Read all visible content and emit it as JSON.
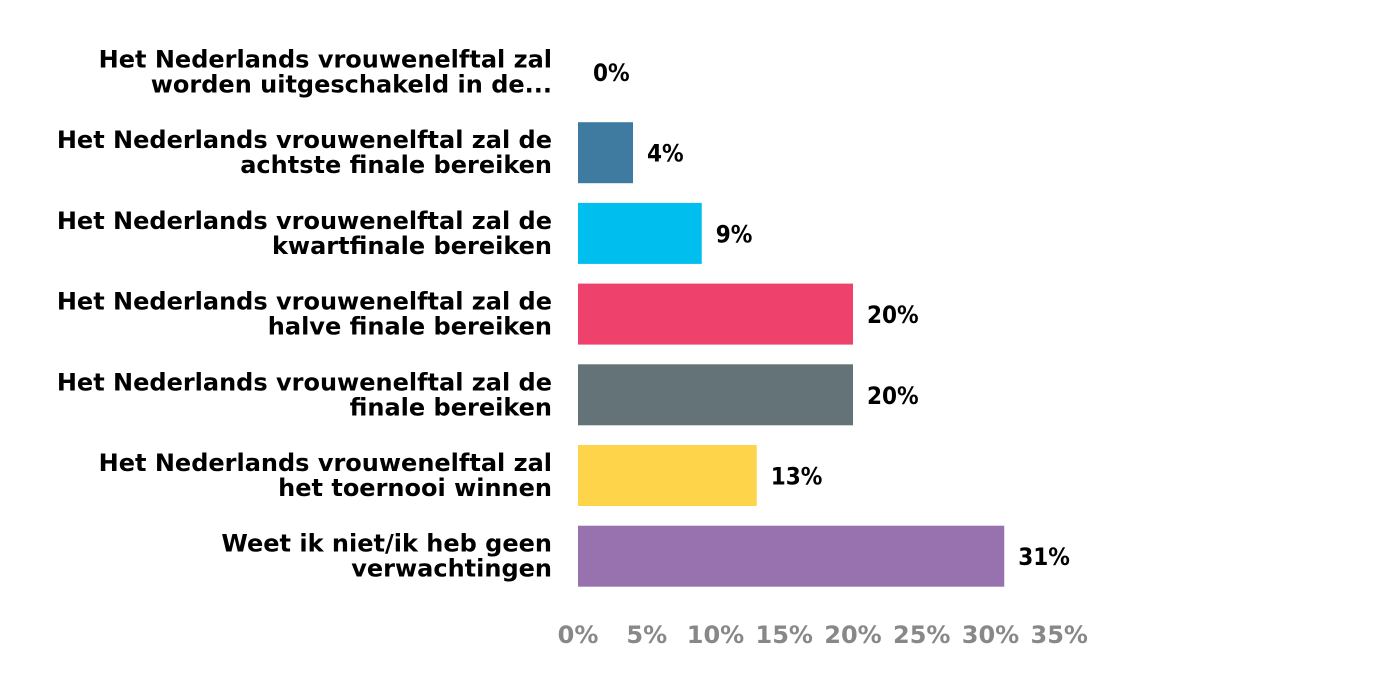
{
  "chart_data": {
    "type": "bar",
    "orientation": "horizontal",
    "categories": [
      [
        "Het Nederlands vrouwenelftal zal",
        "worden uitgeschakeld in de..."
      ],
      [
        "Het Nederlands vrouwenelftal zal de",
        "achtste finale bereiken"
      ],
      [
        "Het Nederlands vrouwenelftal zal de",
        "kwartfinale bereiken"
      ],
      [
        "Het Nederlands vrouwenelftal zal de",
        "halve finale bereiken"
      ],
      [
        "Het Nederlands vrouwenelftal zal de",
        "finale bereiken"
      ],
      [
        "Het Nederlands vrouwenelftal zal",
        "het toernooi winnen"
      ],
      [
        "Weet ik niet/ik heb geen",
        "verwachtingen"
      ]
    ],
    "values": [
      0,
      4,
      9,
      20,
      20,
      13,
      31
    ],
    "value_labels": [
      "0%",
      "4%",
      "9%",
      "20%",
      "20%",
      "13%",
      "31%"
    ],
    "colors": [
      "#3f7ba1",
      "#3f7ba1",
      "#00bfef",
      "#ee416c",
      "#637377",
      "#fed54a",
      "#9872ae"
    ],
    "xlim": [
      0,
      35
    ],
    "x_ticks": [
      0,
      5,
      10,
      15,
      20,
      25,
      30,
      35
    ],
    "x_tick_labels": [
      "0%",
      "5%",
      "10%",
      "15%",
      "20%",
      "25%",
      "30%",
      "35%"
    ],
    "title": "",
    "xlabel": "",
    "ylabel": "",
    "grid": false,
    "legend": "none"
  }
}
